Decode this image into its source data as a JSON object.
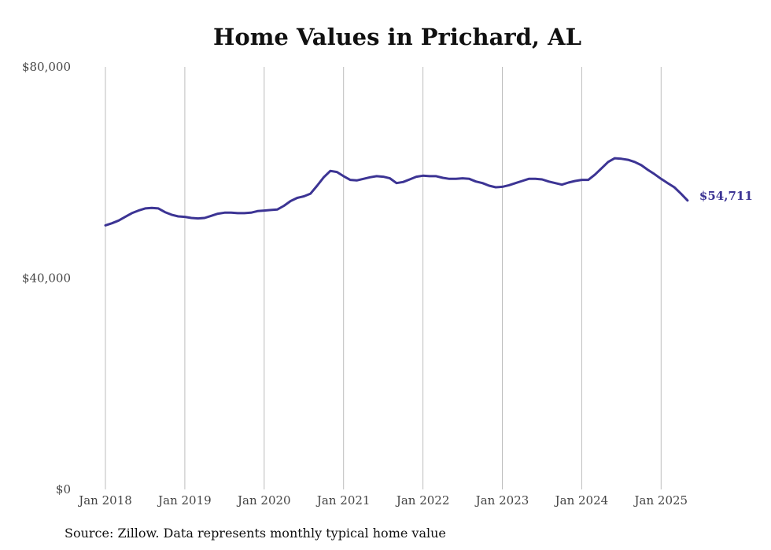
{
  "title": "Home Values in Prichard, AL",
  "source": "Source: Zillow. Data represents monthly typical home value",
  "colors": {
    "line": "#3c3494",
    "grid": "#bdbdbd",
    "text": "#444444"
  },
  "chart_data": {
    "type": "line",
    "title": "Home Values in Prichard, AL",
    "xlabel": "",
    "ylabel": "",
    "y_ticks": [
      {
        "value": 0,
        "label": "$0"
      },
      {
        "value": 40000,
        "label": "$40,000"
      },
      {
        "value": 80000,
        "label": "$80,000"
      }
    ],
    "ylim": [
      0,
      80000
    ],
    "x_ticks": [
      {
        "date": "2018-01",
        "label": "Jan 2018"
      },
      {
        "date": "2019-01",
        "label": "Jan 2019"
      },
      {
        "date": "2020-01",
        "label": "Jan 2020"
      },
      {
        "date": "2021-01",
        "label": "Jan 2021"
      },
      {
        "date": "2022-01",
        "label": "Jan 2022"
      },
      {
        "date": "2023-01",
        "label": "Jan 2023"
      },
      {
        "date": "2024-01",
        "label": "Jan 2024"
      },
      {
        "date": "2025-01",
        "label": "Jan 2025"
      }
    ],
    "xlim": [
      "2018-01",
      "2025-05"
    ],
    "grid": "vertical",
    "end_label": "$54,711",
    "series": [
      {
        "x": [
          "2018-01",
          "2018-02",
          "2018-03",
          "2018-04",
          "2018-05",
          "2018-06",
          "2018-07",
          "2018-08",
          "2018-09",
          "2018-10",
          "2018-11",
          "2018-12",
          "2019-01",
          "2019-02",
          "2019-03",
          "2019-04",
          "2019-05",
          "2019-06",
          "2019-07",
          "2019-08",
          "2019-09",
          "2019-10",
          "2019-11",
          "2019-12",
          "2020-01",
          "2020-02",
          "2020-03",
          "2020-04",
          "2020-05",
          "2020-06",
          "2020-07",
          "2020-08",
          "2020-09",
          "2020-10",
          "2020-11",
          "2020-12",
          "2021-01",
          "2021-02",
          "2021-03",
          "2021-04",
          "2021-05",
          "2021-06",
          "2021-07",
          "2021-08",
          "2021-09",
          "2021-10",
          "2021-11",
          "2021-12",
          "2022-01",
          "2022-02",
          "2022-03",
          "2022-04",
          "2022-05",
          "2022-06",
          "2022-07",
          "2022-08",
          "2022-09",
          "2022-10",
          "2022-11",
          "2022-12",
          "2023-01",
          "2023-02",
          "2023-03",
          "2023-04",
          "2023-05",
          "2023-06",
          "2023-07",
          "2023-08",
          "2023-09",
          "2023-10",
          "2023-11",
          "2023-12",
          "2024-01",
          "2024-02",
          "2024-03",
          "2024-04",
          "2024-05",
          "2024-06",
          "2024-07",
          "2024-08",
          "2024-09",
          "2024-10",
          "2024-11",
          "2024-12",
          "2025-01",
          "2025-02",
          "2025-03",
          "2025-04",
          "2025-05"
        ],
        "values": [
          50000,
          50400,
          50900,
          51600,
          52300,
          52800,
          53200,
          53300,
          53200,
          52500,
          52000,
          51700,
          51600,
          51400,
          51300,
          51400,
          51800,
          52200,
          52400,
          52400,
          52300,
          52300,
          52400,
          52700,
          52800,
          52900,
          53000,
          53700,
          54600,
          55200,
          55500,
          56000,
          57500,
          59100,
          60300,
          60100,
          59300,
          58600,
          58500,
          58800,
          59100,
          59300,
          59200,
          58900,
          58000,
          58200,
          58700,
          59200,
          59400,
          59300,
          59300,
          59000,
          58800,
          58800,
          58900,
          58800,
          58300,
          58000,
          57500,
          57200,
          57300,
          57600,
          58000,
          58400,
          58800,
          58800,
          58700,
          58300,
          58000,
          57700,
          58100,
          58400,
          58600,
          58600,
          59600,
          60800,
          62000,
          62700,
          62600,
          62400,
          62000,
          61400,
          60500,
          59700,
          58800,
          58000,
          57200,
          56000,
          54711
        ]
      }
    ]
  }
}
